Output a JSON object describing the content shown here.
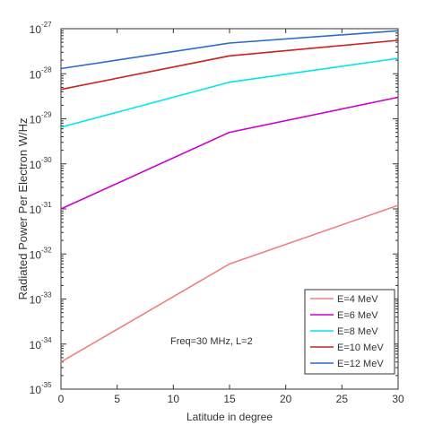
{
  "chart_data": {
    "type": "line",
    "xlabel": "Latitude in degree",
    "ylabel": "Radiated Power Per Electron W/Hz",
    "xlim": [
      0,
      30
    ],
    "ylim": [
      1e-35,
      1e-27
    ],
    "yscale": "log",
    "grid": false,
    "legend_position": "bottom-right",
    "x_ticks": [
      0,
      5,
      10,
      15,
      20,
      25,
      30
    ],
    "y_tick_exponents": [
      -35,
      -34,
      -33,
      -32,
      -31,
      -30,
      -29,
      -28,
      -27
    ],
    "y_tick_base": "10",
    "annotation": "Freq=30 MHz, L=2",
    "x": [
      0,
      15,
      30
    ],
    "series": [
      {
        "name": "E=4 MeV",
        "color": "#f08080",
        "values": [
          4e-35,
          6e-33,
          1.2e-31
        ]
      },
      {
        "name": "E=6 MeV",
        "color": "#cc00cc",
        "values": [
          1e-31,
          5e-30,
          3e-29
        ]
      },
      {
        "name": "E=8 MeV",
        "color": "#00e5ee",
        "values": [
          6.5e-30,
          6.5e-29,
          2.2e-28
        ]
      },
      {
        "name": "E=10 MeV",
        "color": "#cc2222",
        "values": [
          4.5e-29,
          2.5e-28,
          5.5e-28
        ]
      },
      {
        "name": "E=12 MeV",
        "color": "#2a6ad0",
        "values": [
          1.3e-28,
          4.8e-28,
          9e-28
        ]
      }
    ]
  }
}
